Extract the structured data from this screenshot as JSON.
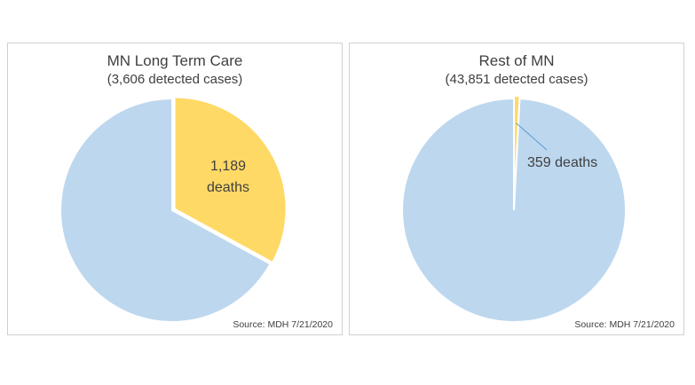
{
  "chart_data": [
    {
      "type": "pie",
      "title": "MN Long Term Care",
      "subtitle": "(3,606 detected cases)",
      "source": "Source: MDH 7/21/2020",
      "total": 3606,
      "slices": [
        {
          "label": "deaths",
          "value": 1189,
          "color": "#FFD966"
        },
        {
          "label": "",
          "value": 2417,
          "color": "#BDD7EE"
        }
      ],
      "annotation": {
        "line1": "1,189",
        "line2": "deaths"
      }
    },
    {
      "type": "pie",
      "title": "Rest of MN",
      "subtitle": "(43,851 detected cases)",
      "source": "Source: MDH 7/21/2020",
      "total": 43851,
      "slices": [
        {
          "label": "deaths",
          "value": 359,
          "color": "#FFD966"
        },
        {
          "label": "",
          "value": 43492,
          "color": "#BDD7EE"
        }
      ],
      "annotation": {
        "line1": "359 deaths",
        "line2": ""
      }
    }
  ]
}
